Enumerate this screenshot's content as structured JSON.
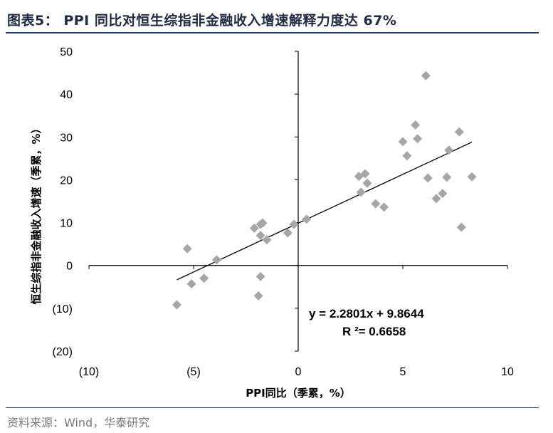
{
  "title": "图表5： PPI 同比对恒生综指非金融收入增速解释力度达 67%",
  "source": "资料来源：Wind，华泰研究",
  "colors": {
    "marker": "#a6a6a6",
    "line": "#000000",
    "rule": "#1f3a6b"
  },
  "chart_data": {
    "type": "scatter",
    "xlabel": "PPI同比（季累，%）",
    "ylabel": "恒生综指非金融收入增速（季累，%）",
    "xlim": [
      -10,
      10
    ],
    "ylim": [
      -20,
      50
    ],
    "x_ticks": [
      -10,
      -5,
      0,
      5,
      10
    ],
    "x_tick_labels": [
      "(10)",
      "(5)",
      "0",
      "5",
      "10"
    ],
    "y_ticks": [
      50,
      40,
      30,
      20,
      10,
      0,
      -10,
      -20
    ],
    "y_tick_labels": [
      "50",
      "40",
      "30",
      "20",
      "10",
      "0",
      "(10)",
      "(20)"
    ],
    "grid": false,
    "points": [
      [
        -5.8,
        -9.2
      ],
      [
        -5.3,
        3.9
      ],
      [
        -5.1,
        -4.3
      ],
      [
        -4.5,
        -3.0
      ],
      [
        -3.9,
        1.3
      ],
      [
        -2.1,
        8.7
      ],
      [
        -1.8,
        9.6
      ],
      [
        -1.7,
        9.9
      ],
      [
        -1.8,
        7.0
      ],
      [
        -1.5,
        6.0
      ],
      [
        -1.8,
        -2.6
      ],
      [
        -1.9,
        -7.1
      ],
      [
        -0.5,
        7.6
      ],
      [
        -0.2,
        9.6
      ],
      [
        0.4,
        10.8
      ],
      [
        2.9,
        20.8
      ],
      [
        3.2,
        21.4
      ],
      [
        3.0,
        17.1
      ],
      [
        3.3,
        19.2
      ],
      [
        3.7,
        14.4
      ],
      [
        4.1,
        13.6
      ],
      [
        5.0,
        28.9
      ],
      [
        5.2,
        25.6
      ],
      [
        5.6,
        32.8
      ],
      [
        5.7,
        29.6
      ],
      [
        6.1,
        44.3
      ],
      [
        6.2,
        20.4
      ],
      [
        6.6,
        15.6
      ],
      [
        6.9,
        16.8
      ],
      [
        7.1,
        20.6
      ],
      [
        7.2,
        26.9
      ],
      [
        7.7,
        31.2
      ],
      [
        7.8,
        8.9
      ],
      [
        8.3,
        20.7
      ]
    ],
    "trendline": {
      "slope": 2.2801,
      "intercept": 9.8644,
      "x_range": [
        -5.8,
        8.3
      ]
    },
    "equation_text": "y = 2.2801x + 9.8644",
    "r2_text": "R ²= 0.6658"
  }
}
